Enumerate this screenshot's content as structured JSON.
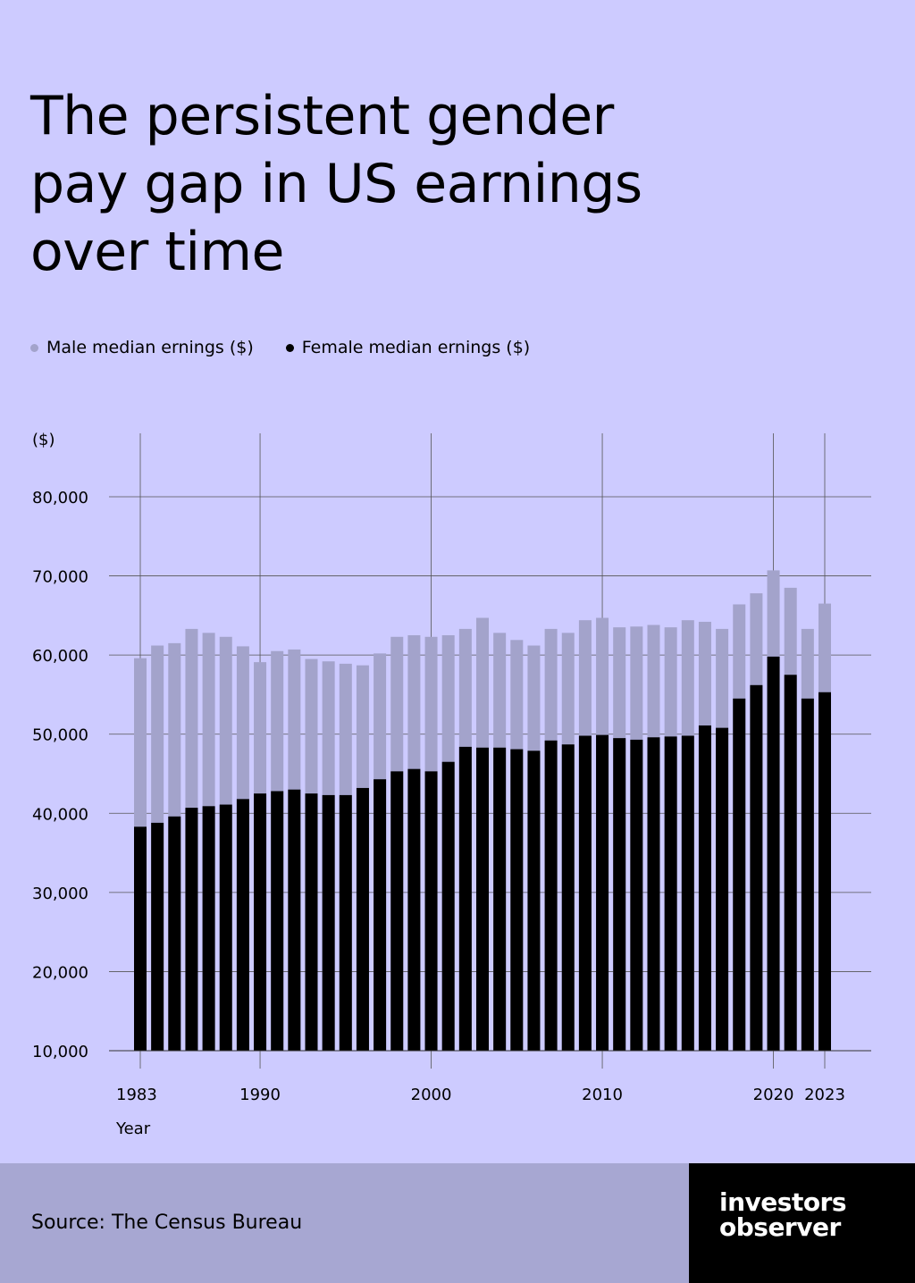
{
  "title": "The persistent gender pay gap in US earnings over time",
  "legend": {
    "male": "Male median ernings ($)",
    "female": "Female median ernings ($)"
  },
  "source": "Source: The Census Bureau",
  "logo": {
    "line1": "investors",
    "line2": "observer"
  },
  "colors": {
    "background": "#cdcbff",
    "male": "#a3a3cb",
    "female": "#000000",
    "footer_source": "#a7a7d2",
    "footer_logo": "#000000"
  },
  "chart_data": {
    "type": "bar",
    "x": [
      1983,
      1984,
      1985,
      1986,
      1987,
      1988,
      1989,
      1990,
      1991,
      1992,
      1993,
      1994,
      1995,
      1996,
      1997,
      1998,
      1999,
      2000,
      2001,
      2002,
      2003,
      2004,
      2005,
      2006,
      2007,
      2008,
      2009,
      2010,
      2011,
      2012,
      2013,
      2014,
      2015,
      2016,
      2017,
      2018,
      2019,
      2020,
      2021,
      2022,
      2023
    ],
    "series": [
      {
        "name": "Male median ernings ($)",
        "values": [
          59600,
          61200,
          61500,
          63300,
          62800,
          62300,
          61100,
          59100,
          60500,
          60700,
          59500,
          59200,
          58900,
          58700,
          60200,
          62300,
          62500,
          62300,
          62500,
          63300,
          64700,
          62800,
          61900,
          61200,
          63300,
          62800,
          64400,
          64700,
          63500,
          63600,
          63800,
          63500,
          64400,
          64200,
          63300,
          66400,
          67800,
          70700,
          68500,
          63300,
          66500
        ]
      },
      {
        "name": "Female median ernings ($)",
        "values": [
          38300,
          38800,
          39600,
          40700,
          40900,
          41100,
          41800,
          42500,
          42800,
          43000,
          42500,
          42300,
          42300,
          43200,
          44300,
          45300,
          45600,
          45300,
          46500,
          48400,
          48300,
          48300,
          48100,
          47900,
          49200,
          48700,
          49800,
          49900,
          49500,
          49300,
          49600,
          49700,
          49800,
          51100,
          50800,
          54500,
          56200,
          59800,
          57500,
          54500,
          55300
        ]
      }
    ],
    "x_ticks": [
      "1983",
      "1990",
      "2000",
      "2010",
      "2020",
      "2023"
    ],
    "x_tick_values": [
      1983,
      1990,
      2000,
      2010,
      2020,
      2023
    ],
    "y_ticks": [
      "10,000",
      "20,000",
      "30,000",
      "40,000",
      "50,000",
      "60,000",
      "70,000",
      "80,000"
    ],
    "y_tick_values": [
      10000,
      20000,
      30000,
      40000,
      50000,
      60000,
      70000,
      80000
    ],
    "ylim": [
      10000,
      80000
    ],
    "ylabel": "($)",
    "xlabel": "Year",
    "grid": true,
    "legend_position": "top-left",
    "stacked": false
  }
}
